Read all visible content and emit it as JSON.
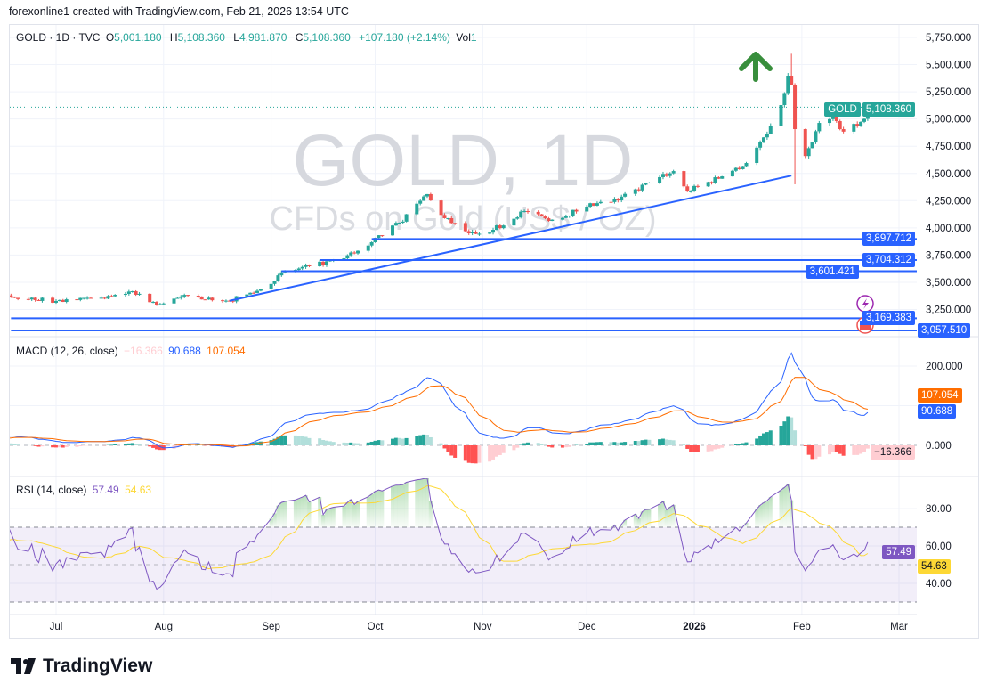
{
  "attribution": "forexonline1 created with TradingView.com, Feb 21, 2026 13:54 UTC",
  "legend": {
    "symbol": "GOLD · 1D · TVC",
    "o_label": "O",
    "o": "5,001.180",
    "h_label": "H",
    "h": "5,108.360",
    "l_label": "L",
    "l": "4,981.870",
    "c_label": "C",
    "c": "5,108.360",
    "change": "+107.180 (+2.14%)",
    "vol_label": "Vol",
    "vol": "1"
  },
  "watermark": {
    "title": "GOLD, 1D",
    "subtitle": "CFDs on Gold (US$ / OZ)"
  },
  "colors": {
    "up": "#26a69a",
    "down": "#ef5350",
    "lines": "#2962ff",
    "macd": "#2962ff",
    "signal": "#ff6d00",
    "rsi": "#7e57c2",
    "rsi_ma": "#fdd835",
    "arrow": "#388e3c"
  },
  "price_axis": {
    "ticks": [
      "5,750.000",
      "5,500.000",
      "5,250.000",
      "5,000.000",
      "4,750.000",
      "4,500.000",
      "4,250.000",
      "4,000.000",
      "3,750.000",
      "3,500.000",
      "3,250.000"
    ]
  },
  "price_badge": {
    "symbol": "GOLD",
    "value": "5,108.360"
  },
  "horizontal_lines": [
    {
      "price": 3897.712,
      "label": "3,897.712",
      "from": "2025-09-30"
    },
    {
      "price": 3704.312,
      "label": "3,704.312",
      "from": "2025-09-15"
    },
    {
      "price": 3601.421,
      "label": "3,601.421",
      "from": "2025-09-04"
    },
    {
      "price": 3169.383,
      "label": "3,169.383",
      "from": "2025-06-18"
    },
    {
      "price": 3057.51,
      "label": "3,057.510",
      "from": "2025-06-18"
    }
  ],
  "trend_line": {
    "from": {
      "date": "2025-08-20",
      "price": 3330
    },
    "to": {
      "date": "2026-01-29",
      "price": 4480
    }
  },
  "time_axis": {
    "labels": [
      {
        "text": "Jul",
        "date": "2025-07-01"
      },
      {
        "text": "Aug",
        "date": "2025-08-01"
      },
      {
        "text": "Sep",
        "date": "2025-09-01"
      },
      {
        "text": "Oct",
        "date": "2025-10-01"
      },
      {
        "text": "Nov",
        "date": "2025-11-01"
      },
      {
        "text": "Dec",
        "date": "2025-12-01"
      },
      {
        "text": "2026",
        "date": "2026-01-01"
      },
      {
        "text": "Feb",
        "date": "2026-02-01"
      },
      {
        "text": "Mar",
        "date": "2026-03-01"
      }
    ]
  },
  "macd": {
    "title": "MACD (12, 26, close)",
    "hist": "−16.366",
    "macd": "90.688",
    "signal": "107.054",
    "ticks": [
      "200.000",
      "0.000"
    ]
  },
  "rsi": {
    "title": "RSI (14, close)",
    "rsi": "57.49",
    "ma": "54.63",
    "ticks": [
      "80.00",
      "60.00",
      "40.00"
    ]
  },
  "logo": "TradingView",
  "chart_data": {
    "type": "candlestick",
    "interval": "1D",
    "ylim": [
      3000,
      5800
    ],
    "last_bar": {
      "date": "2026-02-20",
      "open": 5001.18,
      "high": 5108.36,
      "low": 4981.87,
      "close": 5108.36
    },
    "closes": [
      {
        "date": "2025-05-01",
        "close": 3240
      },
      {
        "date": "2025-05-20",
        "close": 3290
      },
      {
        "date": "2025-06-06",
        "close": 3310
      },
      {
        "date": "2025-06-18",
        "close": 3369
      },
      {
        "date": "2025-07-01",
        "close": 3328
      },
      {
        "date": "2025-07-15",
        "close": 3350
      },
      {
        "date": "2025-07-23",
        "close": 3418
      },
      {
        "date": "2025-07-30",
        "close": 3295
      },
      {
        "date": "2025-08-08",
        "close": 3377
      },
      {
        "date": "2025-08-20",
        "close": 3330
      },
      {
        "date": "2025-08-29",
        "close": 3434
      },
      {
        "date": "2025-09-05",
        "close": 3600
      },
      {
        "date": "2025-09-12",
        "close": 3647
      },
      {
        "date": "2025-09-22",
        "close": 3720
      },
      {
        "date": "2025-09-30",
        "close": 3868
      },
      {
        "date": "2025-10-08",
        "close": 4048
      },
      {
        "date": "2025-10-16",
        "close": 4310
      },
      {
        "date": "2025-10-21",
        "close": 4089
      },
      {
        "date": "2025-10-28",
        "close": 3950
      },
      {
        "date": "2025-11-04",
        "close": 3982
      },
      {
        "date": "2025-11-13",
        "close": 4154
      },
      {
        "date": "2025-11-20",
        "close": 4064
      },
      {
        "date": "2025-12-01",
        "close": 4195
      },
      {
        "date": "2025-12-10",
        "close": 4252
      },
      {
        "date": "2025-12-19",
        "close": 4416
      },
      {
        "date": "2025-12-26",
        "close": 4522
      },
      {
        "date": "2025-12-30",
        "close": 4334
      },
      {
        "date": "2026-01-09",
        "close": 4473
      },
      {
        "date": "2026-01-16",
        "close": 4596
      },
      {
        "date": "2026-01-22",
        "close": 4866
      },
      {
        "date": "2026-01-26",
        "close": 5128
      },
      {
        "date": "2026-01-28",
        "close": 5398
      },
      {
        "date": "2026-01-29",
        "close": 5316,
        "high": 5600
      },
      {
        "date": "2026-01-30",
        "close": 4907,
        "low": 4400
      },
      {
        "date": "2026-02-02",
        "close": 4660
      },
      {
        "date": "2026-02-04",
        "close": 4784
      },
      {
        "date": "2026-02-06",
        "close": 4964
      },
      {
        "date": "2026-02-10",
        "close": 5046
      },
      {
        "date": "2026-02-12",
        "close": 4907
      },
      {
        "date": "2026-02-17",
        "close": 4932
      },
      {
        "date": "2026-02-19",
        "close": 5001.18
      },
      {
        "date": "2026-02-20",
        "close": 5108.36
      }
    ]
  }
}
